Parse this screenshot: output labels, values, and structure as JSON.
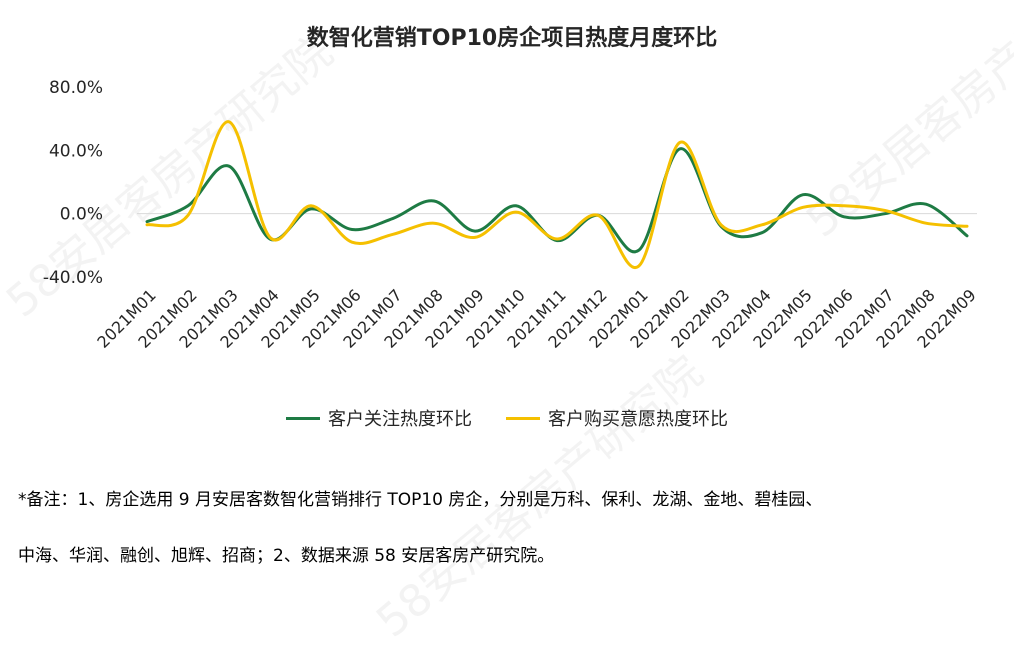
{
  "chart_data": {
    "type": "line",
    "title": "数智化营销TOP10房企项目热度月度环比",
    "categories": [
      "2021M01",
      "2021M02",
      "2021M03",
      "2021M04",
      "2021M05",
      "2021M06",
      "2021M07",
      "2021M08",
      "2021M09",
      "2021M10",
      "2021M11",
      "2021M12",
      "2022M01",
      "2022M02",
      "2022M03",
      "2022M04",
      "2022M05",
      "2022M06",
      "2022M07",
      "2022M08",
      "2022M09"
    ],
    "yticks": [
      "80.0%",
      "40.0%",
      "0.0%",
      "-40.0%"
    ],
    "ylim": [
      -40,
      80
    ],
    "grid": false,
    "legend_position": "bottom",
    "series": [
      {
        "name": "客户关注热度环比",
        "color": "#1e7b44",
        "values": [
          -5,
          5,
          30,
          -16,
          3,
          -10,
          -3,
          8,
          -11,
          5,
          -17,
          -1,
          -23,
          41,
          -8,
          -12,
          12,
          -2,
          0,
          6,
          -14
        ]
      },
      {
        "name": "客户购买意愿热度环比",
        "color": "#f5c000",
        "values": [
          -7,
          -1,
          58,
          -15,
          5,
          -18,
          -13,
          -6,
          -15,
          1,
          -16,
          -1,
          -33,
          45,
          -7,
          -7,
          4,
          5,
          2,
          -6,
          -8
        ]
      }
    ]
  },
  "watermark": "58安居客房产研究院",
  "note": {
    "line1": "*备注：1、房企选用 9 月安居客数智化营销排行 TOP10 房企，分别是万科、保利、龙湖、金地、碧桂园、",
    "line2": "中海、华润、融创、旭辉、招商；2、数据来源 58 安居客房产研究院。"
  }
}
